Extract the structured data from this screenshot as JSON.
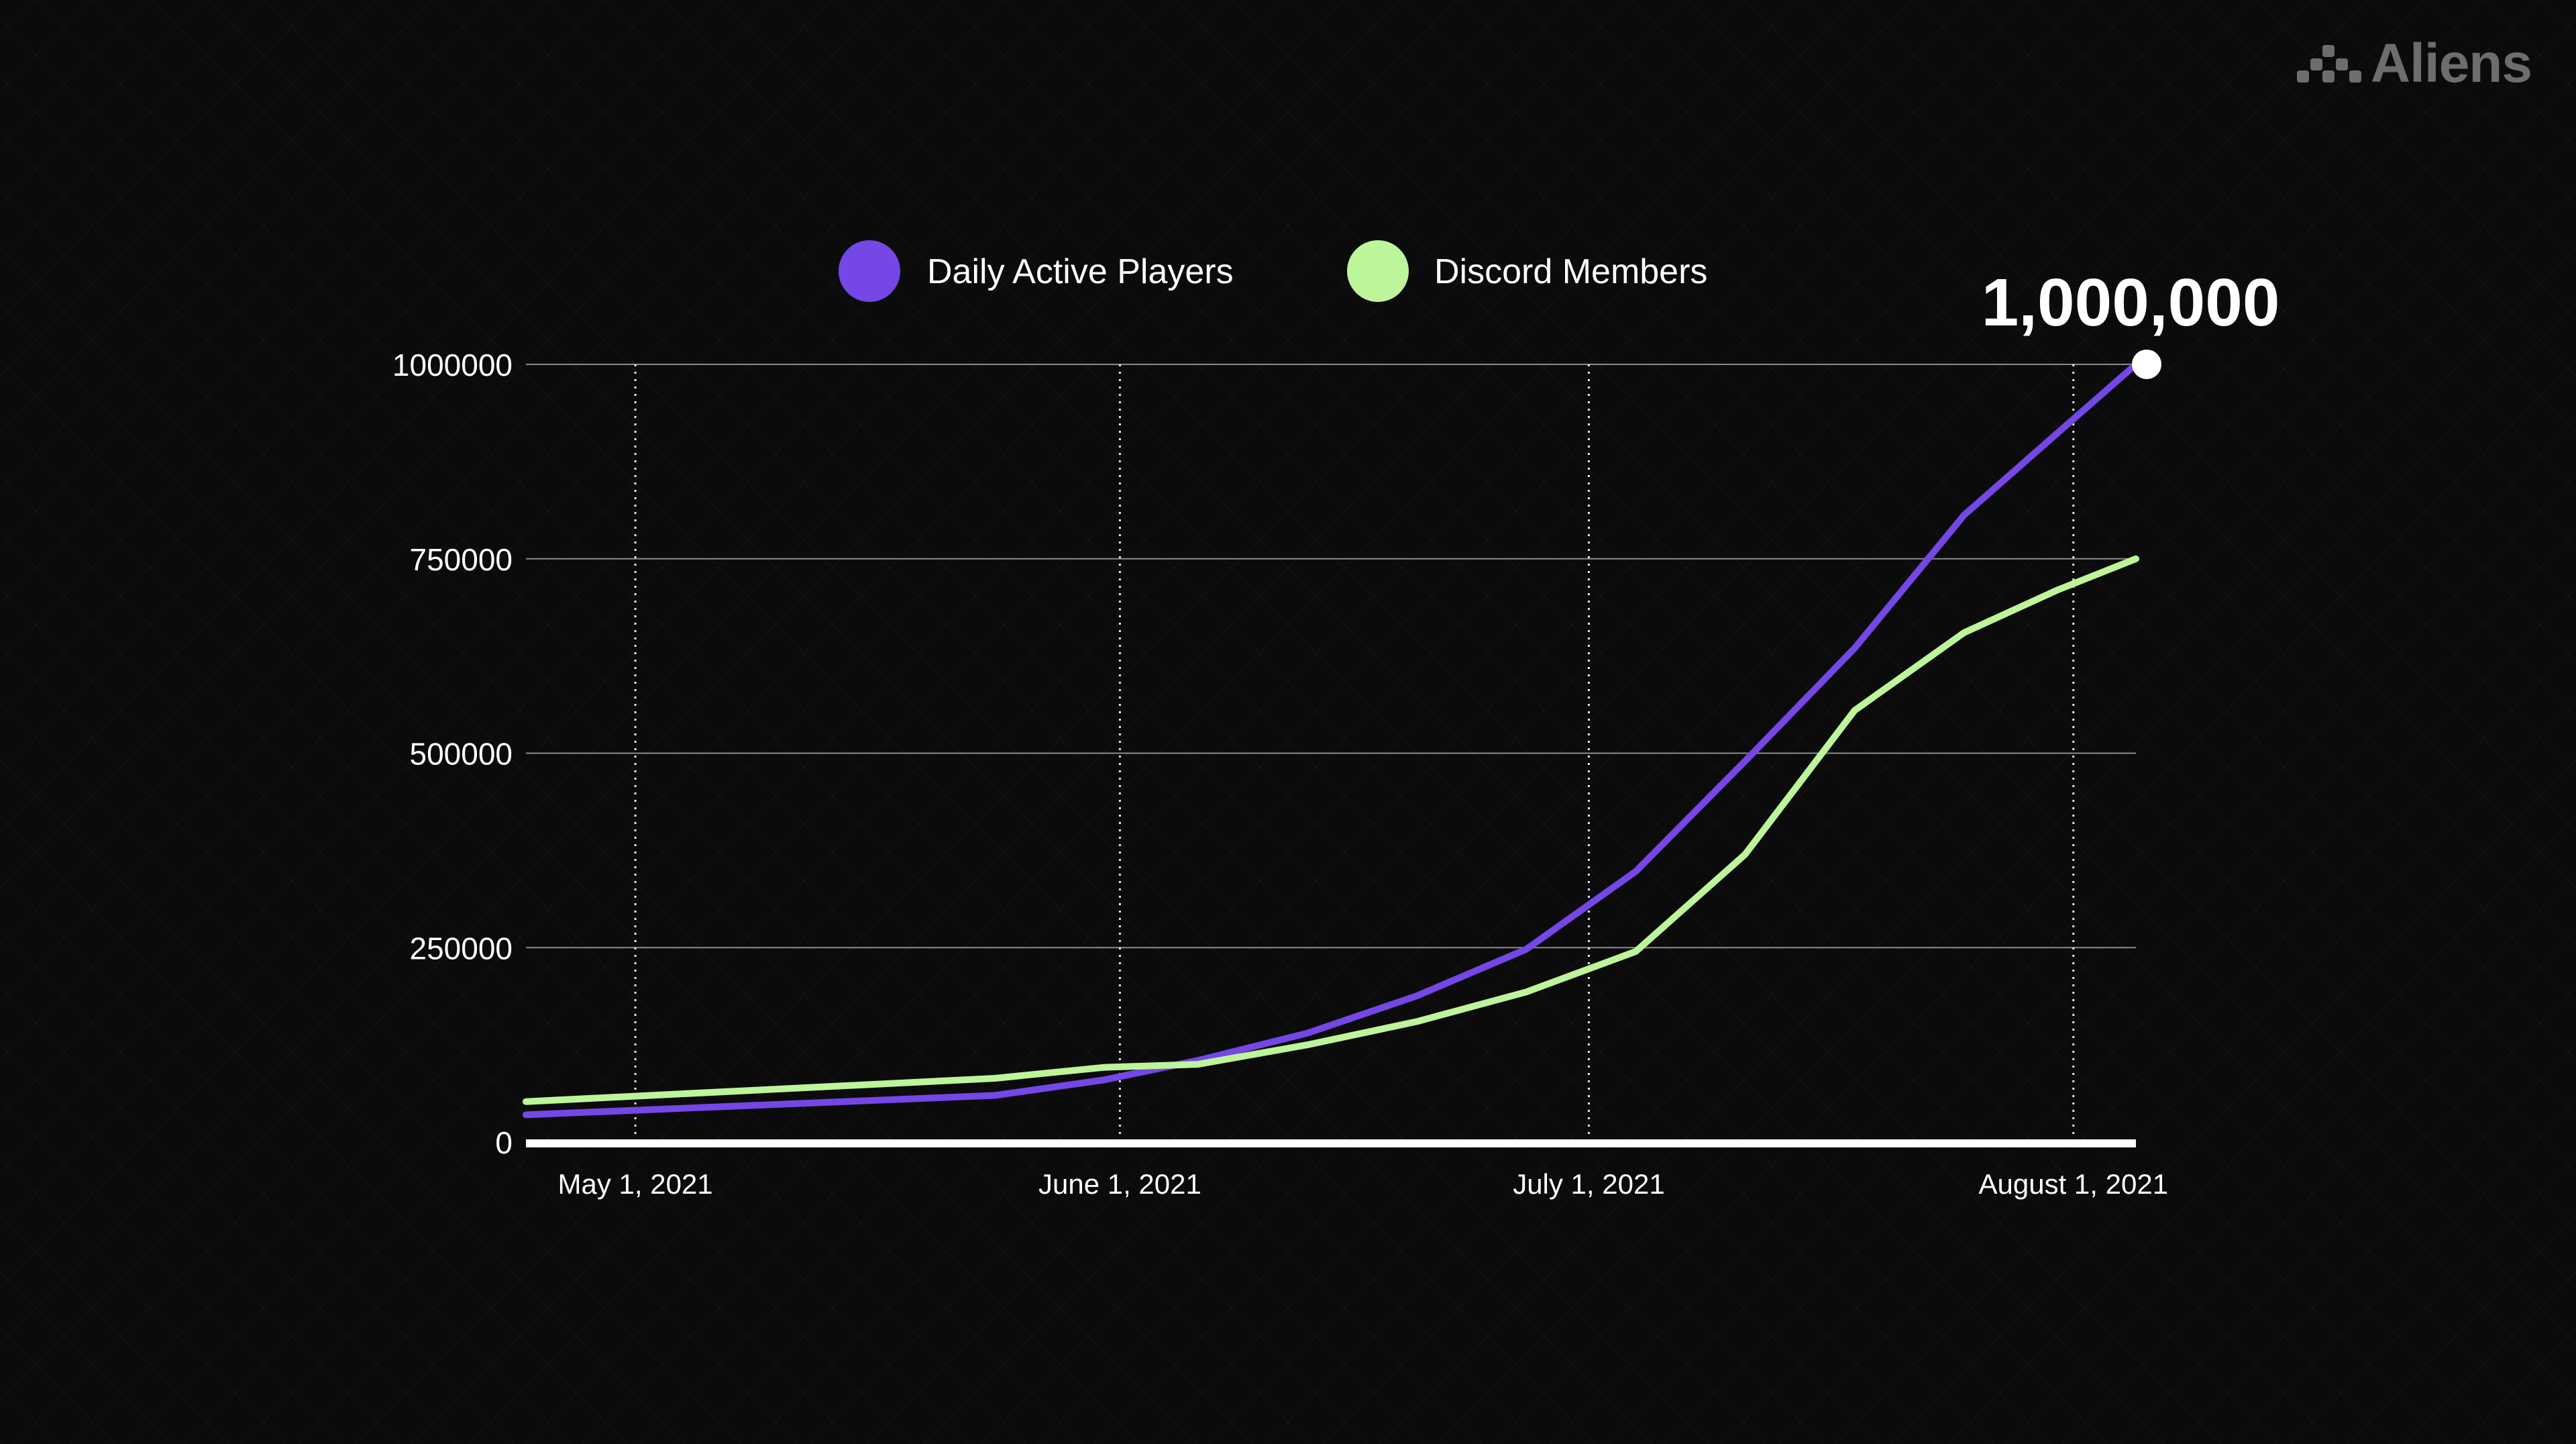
{
  "brand": {
    "name": "Aliens",
    "icon": "aliens-logo-icon",
    "color": "#6d6d6f"
  },
  "colors": {
    "background": "#0c0b0c",
    "daily_active_players": "#7447e6",
    "discord_members": "#bdf59a",
    "text": "#ffffff"
  },
  "chart_data": {
    "type": "line",
    "title": "",
    "xlabel": "",
    "ylabel": "",
    "x_tick_labels": [
      "May 1, 2021",
      "June 1, 2021",
      "July 1, 2021",
      "August 1, 2021"
    ],
    "x_ticks": [
      "2021-05-01",
      "2021-06-01",
      "2021-07-01",
      "2021-08-01"
    ],
    "xlim": [
      "2021-04-24",
      "2021-08-05"
    ],
    "ylim": [
      0,
      1000000
    ],
    "y_ticks": [
      0,
      250000,
      500000,
      750000,
      1000000
    ],
    "grid": {
      "horizontal": true,
      "vertical_dotted_at_x_ticks": true
    },
    "legend": {
      "position": "top-center",
      "marker": "circle"
    },
    "x": [
      "2021-04-24",
      "2021-05-24",
      "2021-05-31",
      "2021-06-06",
      "2021-06-13",
      "2021-06-20",
      "2021-06-27",
      "2021-07-04",
      "2021-07-11",
      "2021-07-18",
      "2021-07-25",
      "2021-07-31",
      "2021-08-05"
    ],
    "series": [
      {
        "name": "Daily Active Players",
        "color": "#7447e6",
        "values": [
          35000,
          60000,
          80000,
          105000,
          140000,
          188000,
          248000,
          348000,
          490000,
          635000,
          806000,
          912000,
          1000000
        ]
      },
      {
        "name": "Discord Members",
        "color": "#bdf59a",
        "values": [
          52000,
          82000,
          96000,
          100000,
          125000,
          155000,
          193000,
          245000,
          370000,
          555000,
          655000,
          710000,
          750000
        ]
      }
    ],
    "annotation": {
      "text": "1,000,000",
      "x": "2021-08-05",
      "y": 1000000
    }
  }
}
